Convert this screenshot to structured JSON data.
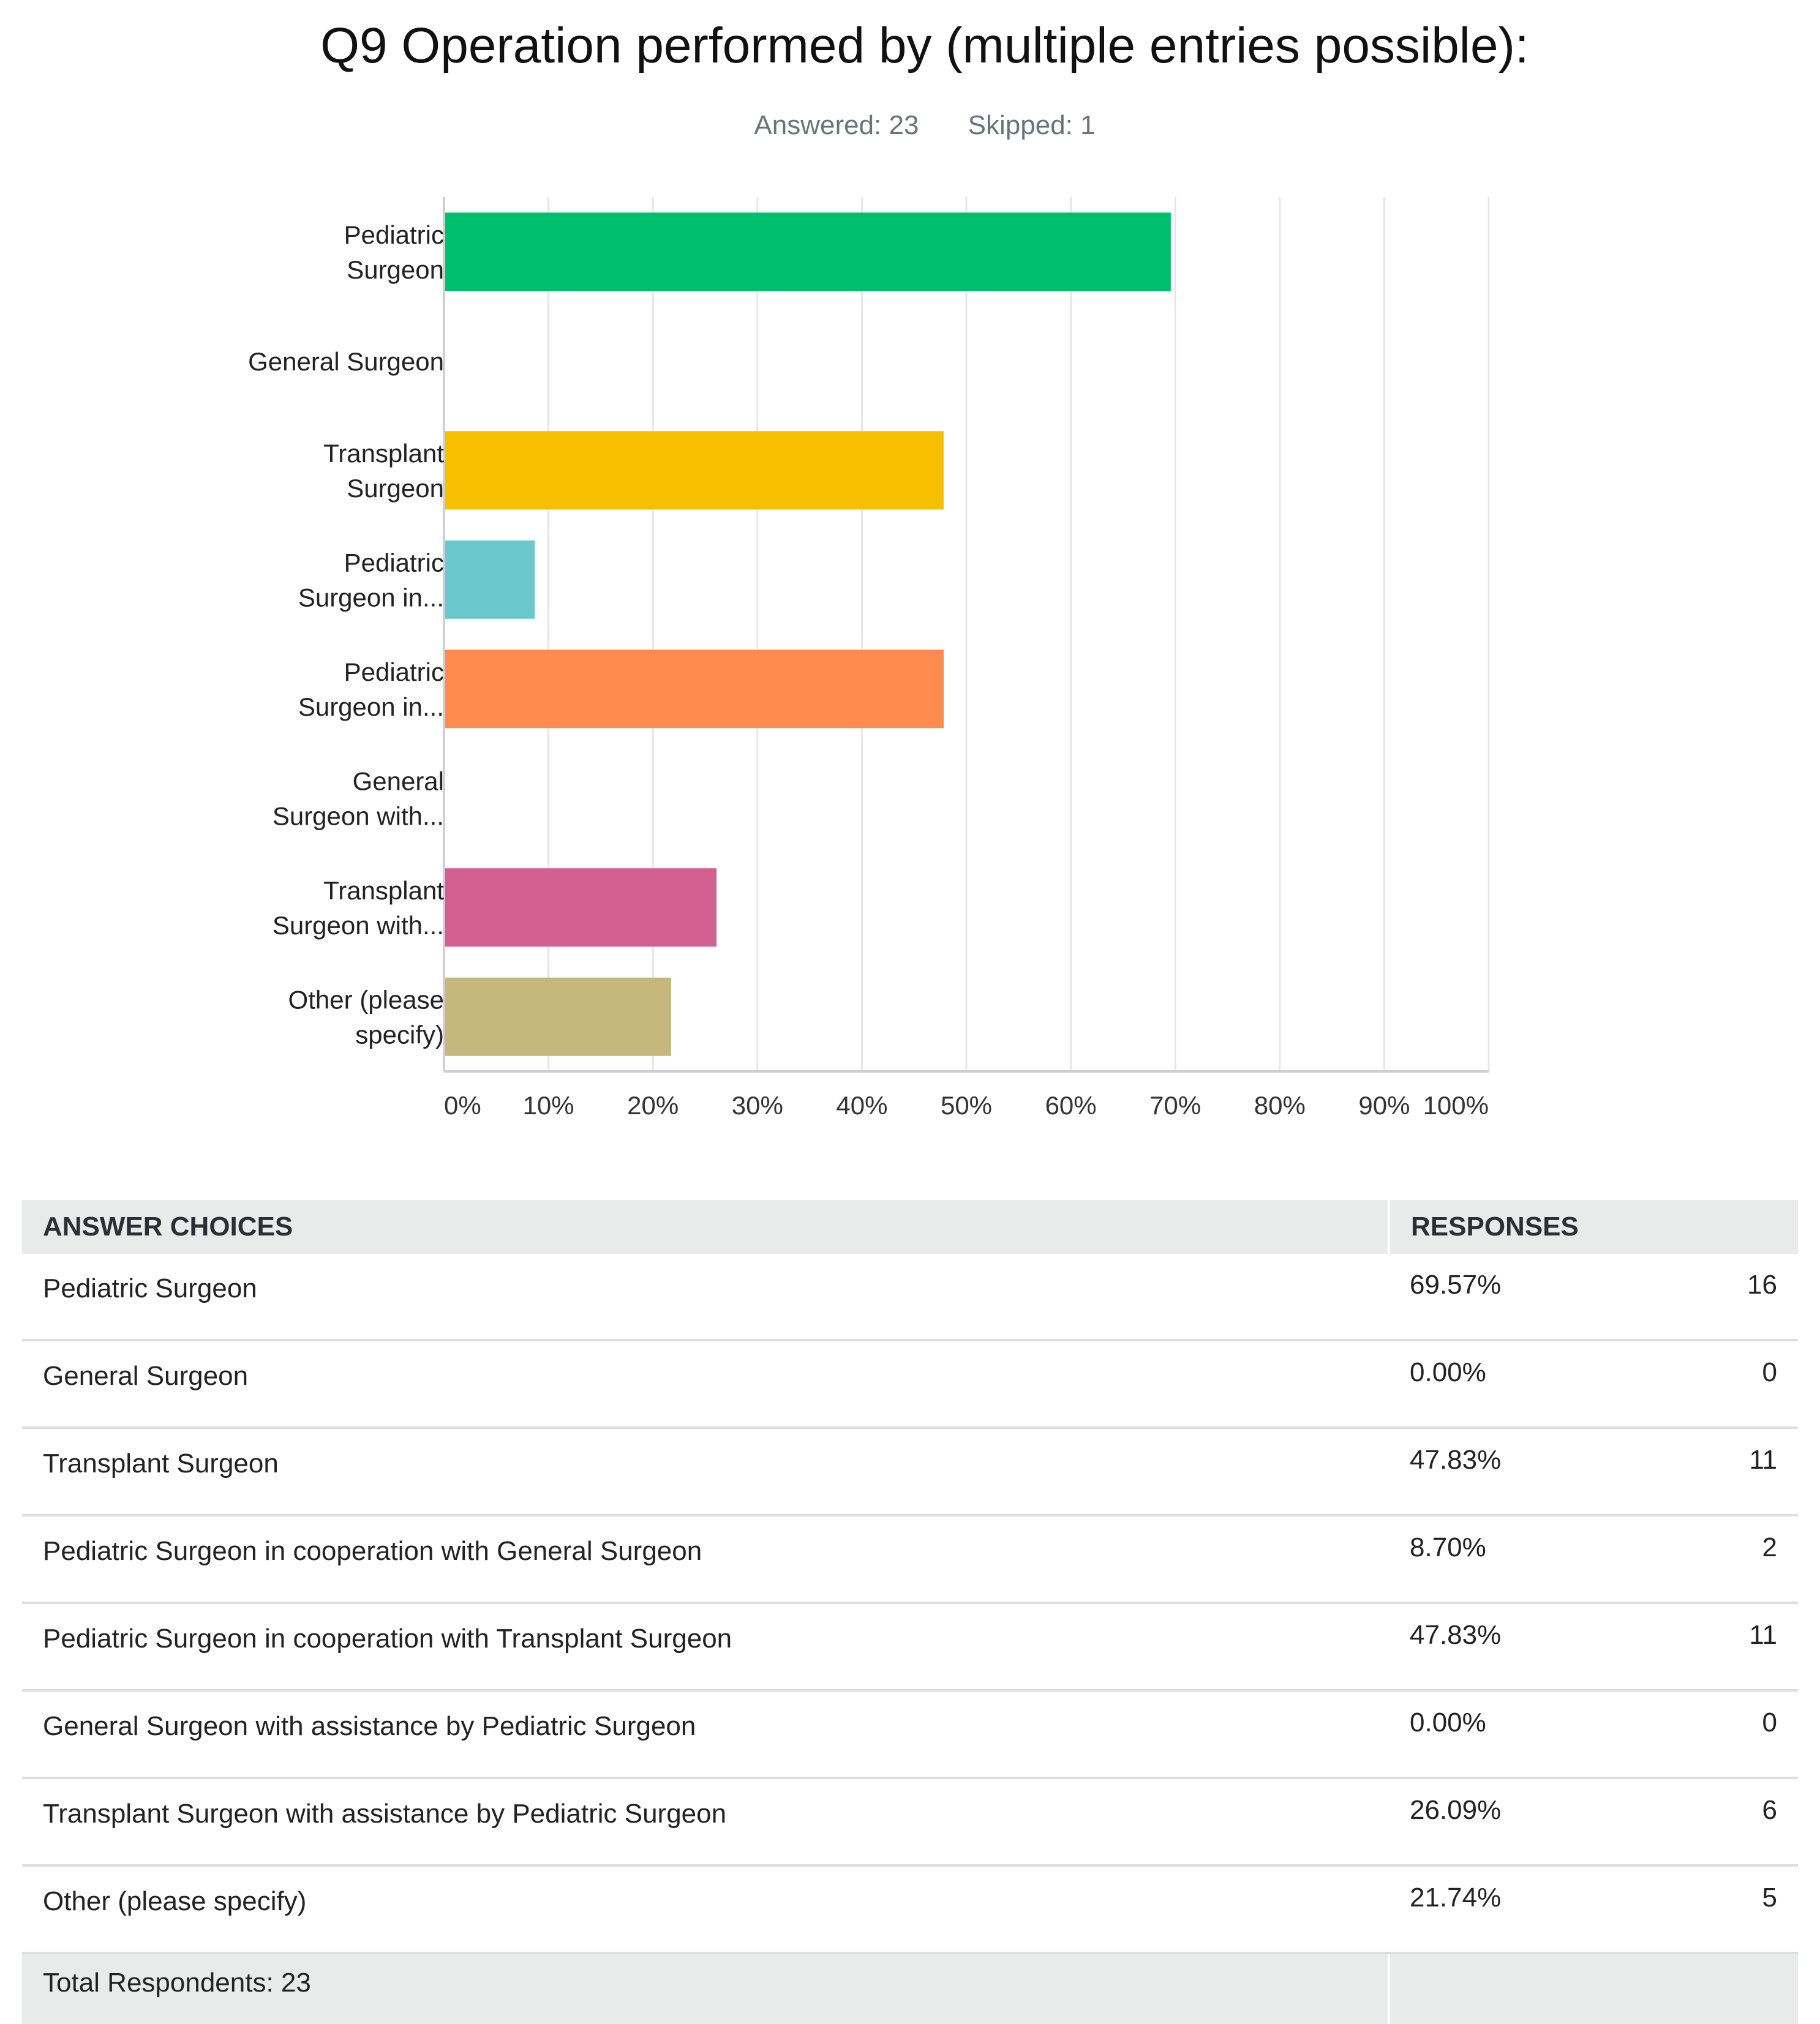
{
  "header": {
    "title": "Q9 Operation performed by (multiple entries possible):",
    "answered": "Answered: 23",
    "skipped": "Skipped: 1"
  },
  "chart_data": {
    "type": "bar",
    "orientation": "horizontal",
    "title": "Q9 Operation performed by (multiple entries possible):",
    "xlabel": "",
    "ylabel": "",
    "xlim": [
      0,
      100
    ],
    "x_ticks": [
      "0%",
      "10%",
      "20%",
      "30%",
      "40%",
      "50%",
      "60%",
      "70%",
      "80%",
      "90%",
      "100%"
    ],
    "grid": "vertical",
    "categories": [
      [
        "Pediatric",
        "Surgeon"
      ],
      [
        "General Surgeon"
      ],
      [
        "Transplant",
        "Surgeon"
      ],
      [
        "Pediatric",
        "Surgeon in..."
      ],
      [
        "Pediatric",
        "Surgeon in..."
      ],
      [
        "General",
        "Surgeon with..."
      ],
      [
        "Transplant",
        "Surgeon with..."
      ],
      [
        "Other (please",
        "specify)"
      ]
    ],
    "values": [
      69.57,
      0.0,
      47.83,
      8.7,
      47.83,
      0.0,
      26.09,
      21.74
    ],
    "colors": [
      "#00bf6f",
      "#00bf6f",
      "#f8bf00",
      "#6bc8cd",
      "#ff8b4f",
      "#7f7fff",
      "#d25f90",
      "#c5b87a"
    ]
  },
  "table": {
    "headers": {
      "choices": "ANSWER CHOICES",
      "responses": "RESPONSES"
    },
    "rows": [
      {
        "choice": "Pediatric Surgeon",
        "pct": "69.57%",
        "count": "16"
      },
      {
        "choice": "General Surgeon",
        "pct": "0.00%",
        "count": "0"
      },
      {
        "choice": "Transplant Surgeon",
        "pct": "47.83%",
        "count": "11"
      },
      {
        "choice": "Pediatric Surgeon in cooperation with General Surgeon",
        "pct": "8.70%",
        "count": "2"
      },
      {
        "choice": "Pediatric Surgeon in cooperation with Transplant Surgeon",
        "pct": "47.83%",
        "count": "11"
      },
      {
        "choice": "General Surgeon with assistance by Pediatric Surgeon",
        "pct": "0.00%",
        "count": "0"
      },
      {
        "choice": "Transplant Surgeon with assistance by Pediatric Surgeon",
        "pct": "26.09%",
        "count": "6"
      },
      {
        "choice": "Other (please specify)",
        "pct": "21.74%",
        "count": "5"
      }
    ],
    "total": "Total Respondents: 23"
  }
}
